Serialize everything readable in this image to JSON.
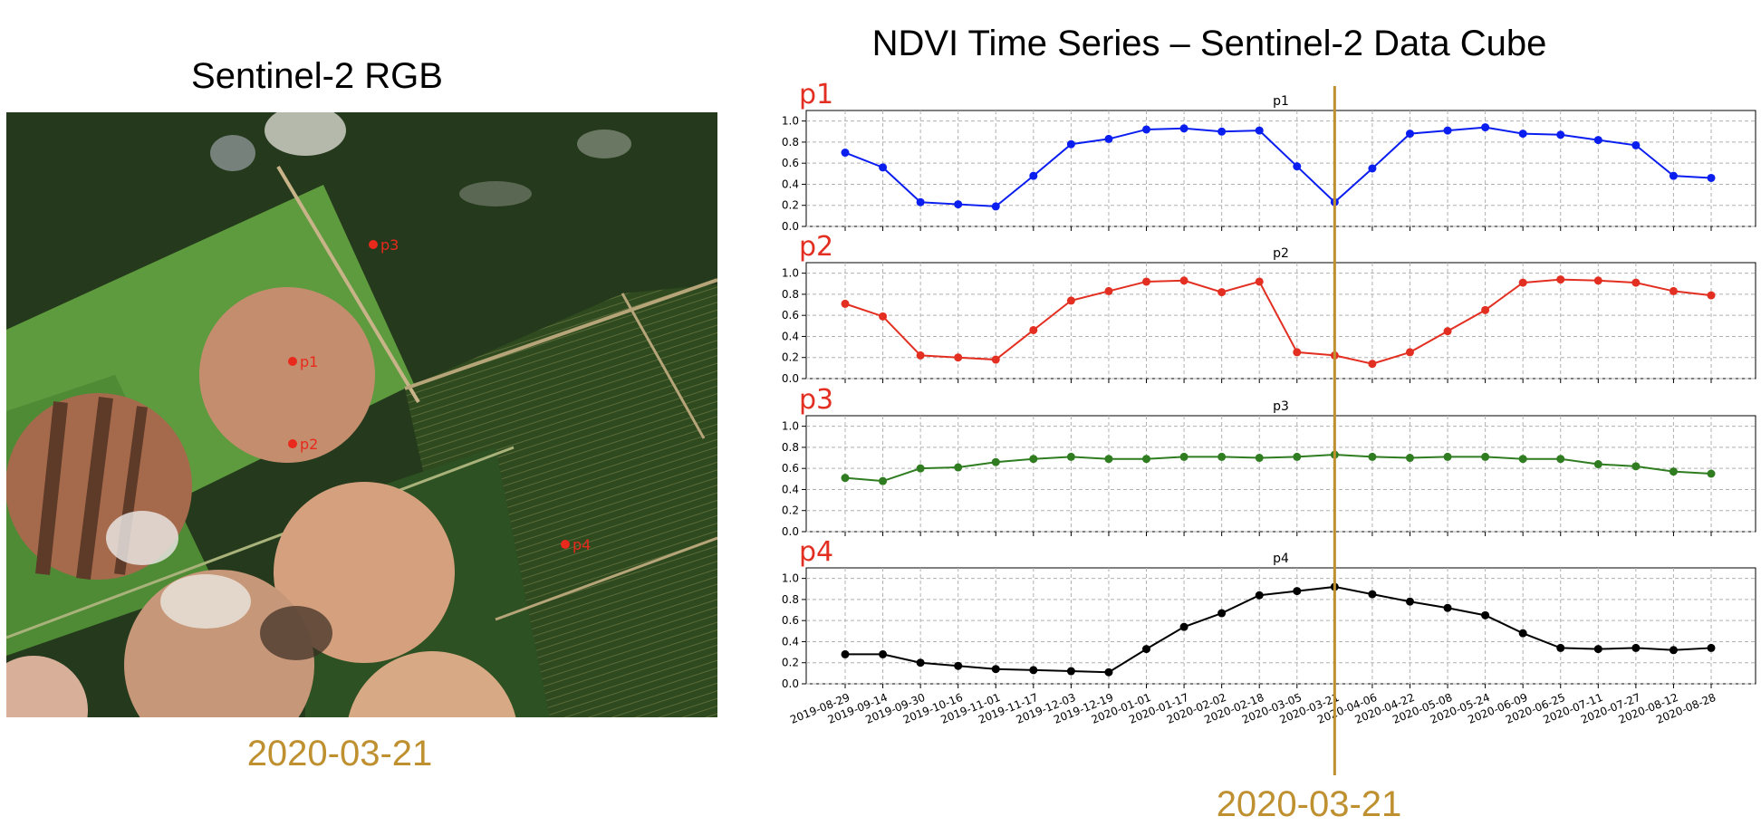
{
  "rgb_panel": {
    "title": "Sentinel-2 RGB",
    "date": "2020-03-21",
    "points": [
      "p1",
      "p2",
      "p3",
      "p4"
    ],
    "marker_color": "#e8291c"
  },
  "timeseries_panel": {
    "title": "NDVI Time Series – Sentinel-2 Data Cube",
    "highlight_date": "2020-03-21",
    "highlight_color": "#bf9030"
  },
  "chart_data": {
    "type": "line",
    "x": [
      "2019-08-29",
      "2019-09-14",
      "2019-09-30",
      "2019-10-16",
      "2019-11-01",
      "2019-11-17",
      "2019-12-03",
      "2019-12-19",
      "2020-01-01",
      "2020-01-17",
      "2020-02-02",
      "2020-02-18",
      "2020-03-05",
      "2020-03-21",
      "2020-04-06",
      "2020-04-22",
      "2020-05-08",
      "2020-05-24",
      "2020-06-09",
      "2020-06-25",
      "2020-07-11",
      "2020-07-27",
      "2020-08-12",
      "2020-08-28"
    ],
    "ylim": [
      0,
      1.1
    ],
    "yticks": [
      "0.0",
      "0.2",
      "0.4",
      "0.6",
      "0.8",
      "1.0"
    ],
    "grid": true,
    "vertical_line_at": "2020-03-21",
    "panels": [
      {
        "label": "p1",
        "title": "p1",
        "color": "#0b1ef0",
        "values": [
          0.7,
          0.56,
          0.23,
          0.21,
          0.19,
          0.48,
          0.78,
          0.83,
          0.92,
          0.93,
          0.9,
          0.91,
          0.57,
          0.23,
          0.55,
          0.88,
          0.91,
          0.94,
          0.88,
          0.87,
          0.82,
          0.77,
          0.48,
          0.46
        ]
      },
      {
        "label": "p2",
        "title": "p2",
        "color": "#e32f21",
        "values": [
          0.71,
          0.59,
          0.22,
          0.2,
          0.18,
          0.46,
          0.74,
          0.83,
          0.92,
          0.93,
          0.82,
          0.92,
          0.25,
          0.22,
          0.14,
          0.25,
          0.45,
          0.65,
          0.91,
          0.94,
          0.93,
          0.91,
          0.83,
          0.79
        ]
      },
      {
        "label": "p3",
        "title": "p3",
        "color": "#2f7d20",
        "values": [
          0.51,
          0.48,
          0.6,
          0.61,
          0.66,
          0.69,
          0.71,
          0.69,
          0.69,
          0.71,
          0.71,
          0.7,
          0.71,
          0.73,
          0.71,
          0.7,
          0.71,
          0.71,
          0.69,
          0.69,
          0.64,
          0.62,
          0.57,
          0.55
        ]
      },
      {
        "label": "p4",
        "title": "p4",
        "color": "#000000",
        "values": [
          0.28,
          0.28,
          0.2,
          0.17,
          0.14,
          0.13,
          0.12,
          0.11,
          0.33,
          0.54,
          0.67,
          0.84,
          0.88,
          0.92,
          0.85,
          0.78,
          0.72,
          0.65,
          0.48,
          0.34,
          0.33,
          0.34,
          0.32,
          0.34
        ]
      }
    ]
  }
}
